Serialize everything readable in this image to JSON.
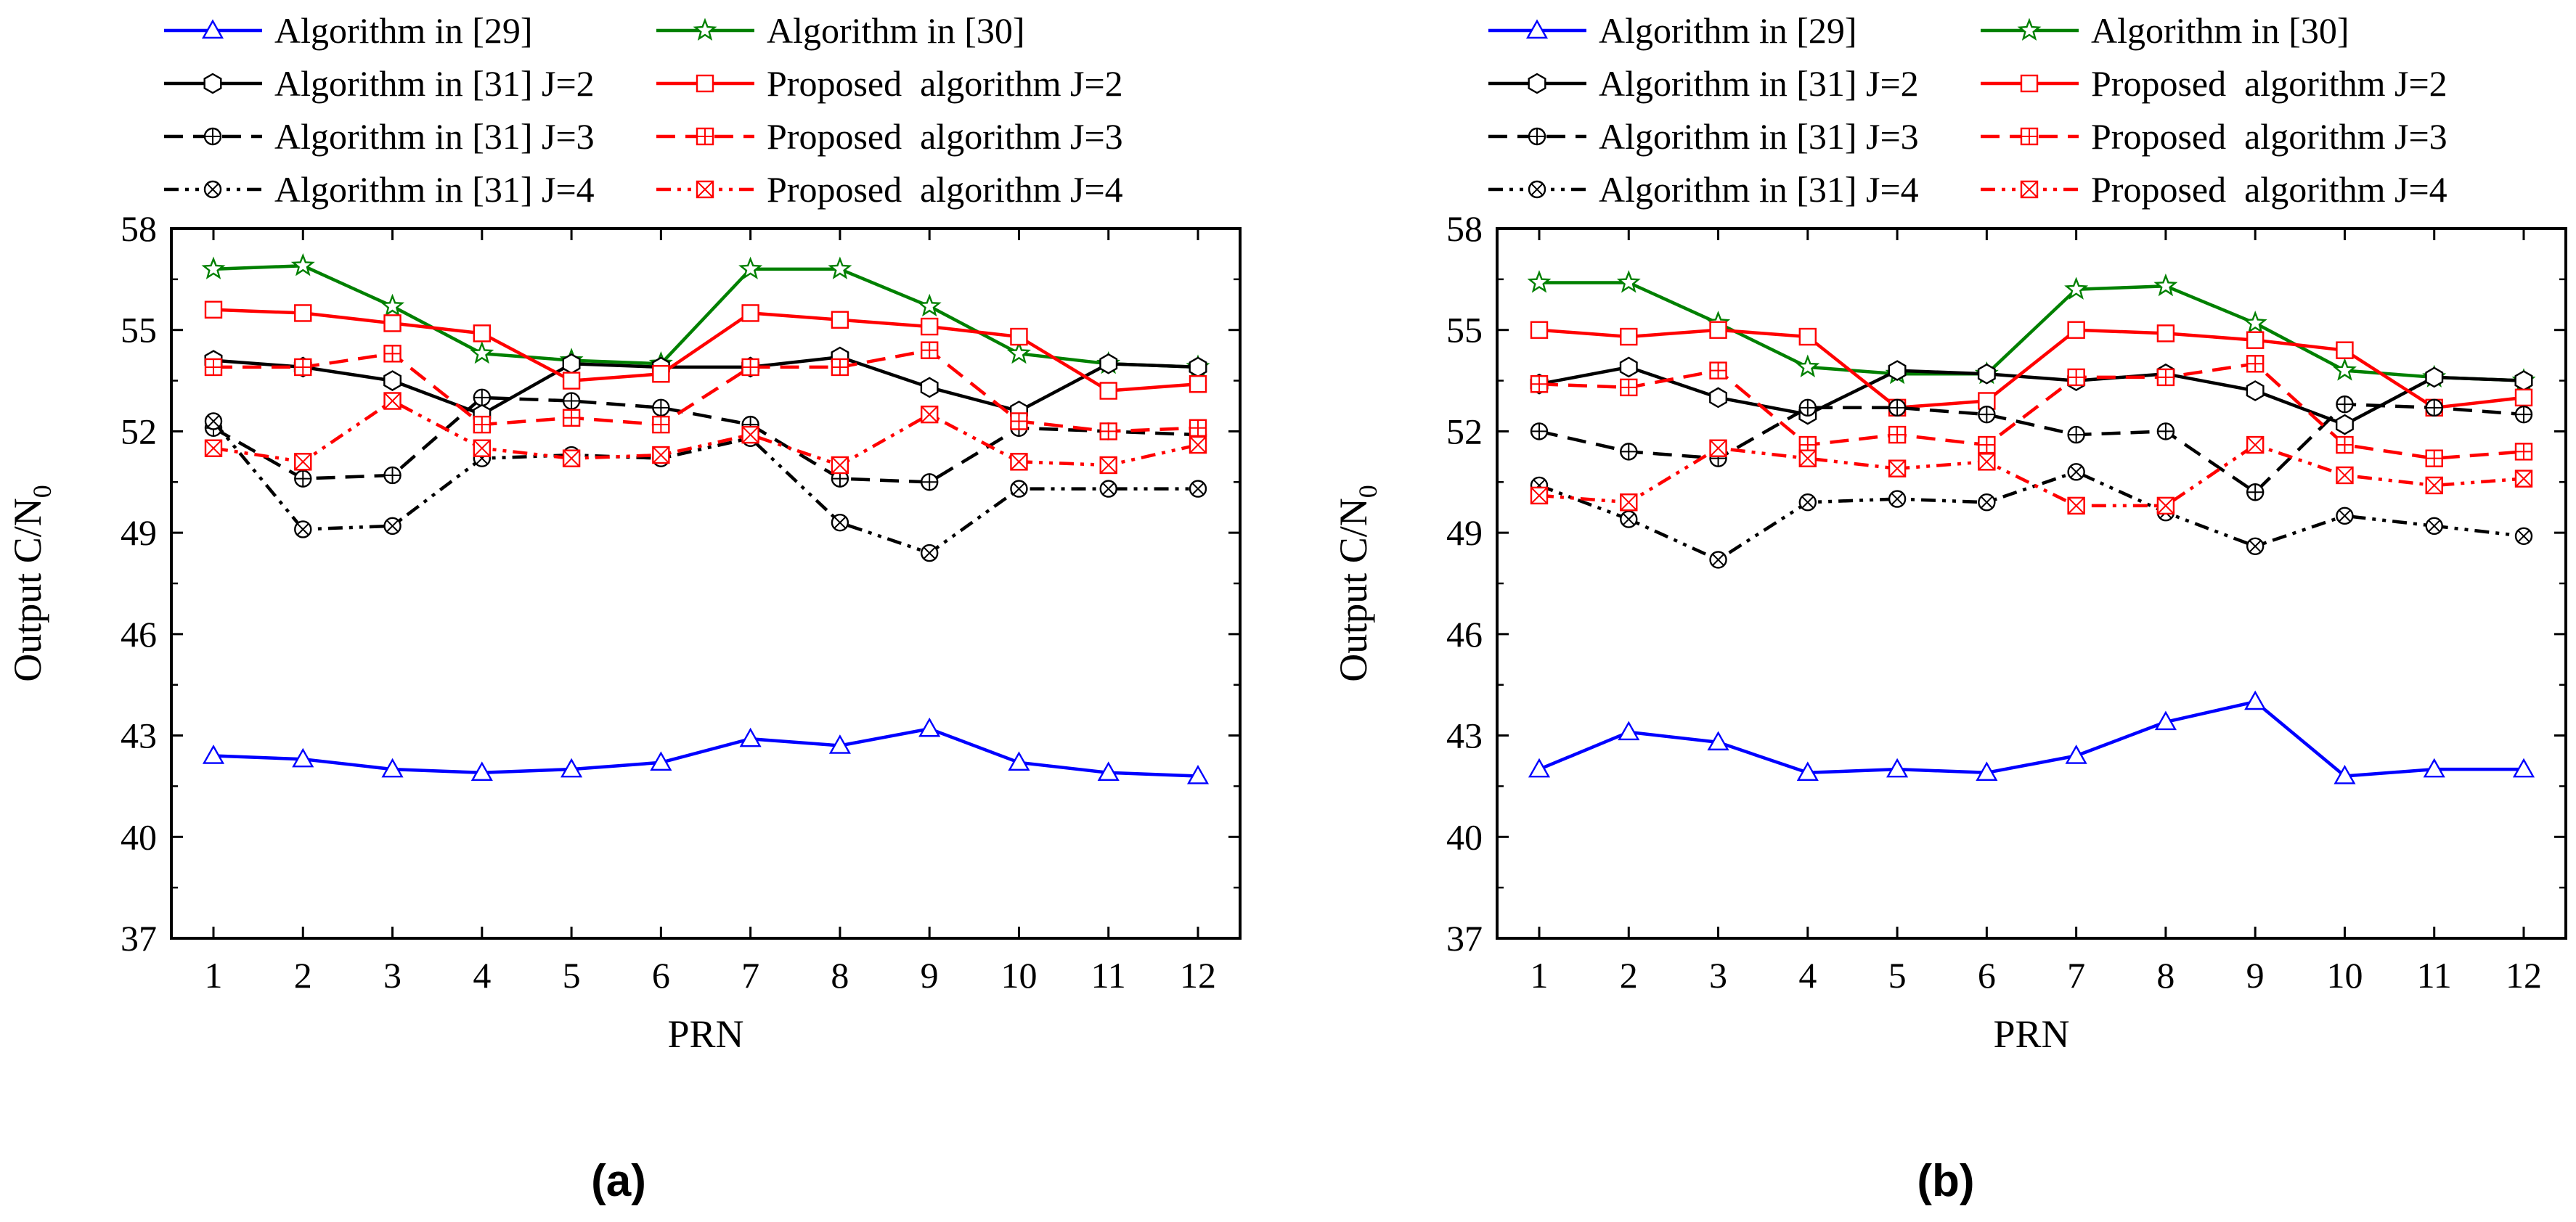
{
  "chart_data": [
    {
      "type": "line",
      "panel_label": "(a)",
      "xlabel": "PRN",
      "ylabel": "Output C/N0",
      "ylabel_main": "Output C/N",
      "ylabel_sub": "0",
      "xlim": [
        1,
        12
      ],
      "ylim": [
        37,
        58
      ],
      "yticks": [
        37,
        40,
        43,
        46,
        49,
        52,
        55,
        58
      ],
      "xticks": [
        1,
        2,
        3,
        4,
        5,
        6,
        7,
        8,
        9,
        10,
        11,
        12
      ],
      "x": [
        1,
        2,
        3,
        4,
        5,
        6,
        7,
        8,
        9,
        10,
        11,
        12
      ],
      "legend_position": "top",
      "series": [
        {
          "name": "Algorithm in [29]",
          "color": "#0000ff",
          "dash": "solid",
          "marker": "triangle",
          "values": [
            42.4,
            42.3,
            42.0,
            41.9,
            42.0,
            42.2,
            42.9,
            42.7,
            43.2,
            42.2,
            41.9,
            41.8
          ]
        },
        {
          "name": "Algorithm in [30]",
          "color": "#008000",
          "dash": "solid",
          "marker": "star",
          "values": [
            56.8,
            56.9,
            55.7,
            54.3,
            54.1,
            54.0,
            56.8,
            56.8,
            55.7,
            54.3,
            54.0,
            53.9
          ]
        },
        {
          "name": "Algorithm in [31] J=2",
          "color": "#000000",
          "dash": "solid",
          "marker": "hexagon",
          "values": [
            54.1,
            53.9,
            53.5,
            52.5,
            54.0,
            53.9,
            53.9,
            54.2,
            53.3,
            52.6,
            54.0,
            53.9
          ]
        },
        {
          "name": "Proposed  algorithm J=2",
          "color": "#ff0000",
          "dash": "solid",
          "marker": "square",
          "values": [
            55.6,
            55.5,
            55.2,
            54.9,
            53.5,
            53.7,
            55.5,
            55.3,
            55.1,
            54.8,
            53.2,
            53.4
          ]
        },
        {
          "name": "Algorithm in [31] J=3",
          "color": "#000000",
          "dash": "dash",
          "marker": "circleplus",
          "values": [
            52.1,
            50.6,
            50.7,
            53.0,
            52.9,
            52.7,
            52.2,
            50.6,
            50.5,
            52.1,
            52.0,
            51.9
          ]
        },
        {
          "name": "Proposed  algorithm J=3",
          "color": "#ff0000",
          "dash": "dash",
          "marker": "squareplus",
          "values": [
            53.9,
            53.9,
            54.3,
            52.2,
            52.4,
            52.2,
            53.9,
            53.9,
            54.4,
            52.3,
            52.0,
            52.1
          ]
        },
        {
          "name": "Algorithm in [31] J=4",
          "color": "#000000",
          "dash": "dashdotdot",
          "marker": "circlex",
          "values": [
            52.3,
            49.1,
            49.2,
            51.2,
            51.3,
            51.2,
            51.8,
            49.3,
            48.4,
            50.3,
            50.3,
            50.3
          ]
        },
        {
          "name": "Proposed  algorithm J=4",
          "color": "#ff0000",
          "dash": "dashdotdot",
          "marker": "squarex",
          "values": [
            51.5,
            51.1,
            52.9,
            51.5,
            51.2,
            51.3,
            51.9,
            51.0,
            52.5,
            51.1,
            51.0,
            51.6
          ]
        }
      ]
    },
    {
      "type": "line",
      "panel_label": "(b)",
      "xlabel": "PRN",
      "ylabel": "Output C/N0",
      "ylabel_main": "Output C/N",
      "ylabel_sub": "0",
      "xlim": [
        1,
        12
      ],
      "ylim": [
        37,
        58
      ],
      "yticks": [
        37,
        40,
        43,
        46,
        49,
        52,
        55,
        58
      ],
      "xticks": [
        1,
        2,
        3,
        4,
        5,
        6,
        7,
        8,
        9,
        10,
        11,
        12
      ],
      "x": [
        1,
        2,
        3,
        4,
        5,
        6,
        7,
        8,
        9,
        10,
        11,
        12
      ],
      "legend_position": "top",
      "series": [
        {
          "name": "Algorithm in [29]",
          "color": "#0000ff",
          "dash": "solid",
          "marker": "triangle",
          "values": [
            42.0,
            43.1,
            42.8,
            41.9,
            42.0,
            41.9,
            42.4,
            43.4,
            44.0,
            41.8,
            42.0,
            42.0
          ]
        },
        {
          "name": "Algorithm in [30]",
          "color": "#008000",
          "dash": "solid",
          "marker": "star",
          "values": [
            56.4,
            56.4,
            55.2,
            53.9,
            53.7,
            53.7,
            56.2,
            56.3,
            55.2,
            53.8,
            53.6,
            53.5
          ]
        },
        {
          "name": "Algorithm in [31] J=2",
          "color": "#000000",
          "dash": "solid",
          "marker": "hexagon",
          "values": [
            53.4,
            53.9,
            53.0,
            52.5,
            53.8,
            53.7,
            53.5,
            53.7,
            53.2,
            52.2,
            53.6,
            53.5
          ]
        },
        {
          "name": "Proposed  algorithm J=2",
          "color": "#ff0000",
          "dash": "solid",
          "marker": "square",
          "values": [
            55.0,
            54.8,
            55.0,
            54.8,
            52.7,
            52.9,
            55.0,
            54.9,
            54.7,
            54.4,
            52.7,
            53.0
          ]
        },
        {
          "name": "Algorithm in [31] J=3",
          "color": "#000000",
          "dash": "dash",
          "marker": "circleplus",
          "values": [
            52.0,
            51.4,
            51.2,
            52.7,
            52.7,
            52.5,
            51.9,
            52.0,
            50.2,
            52.8,
            52.7,
            52.5
          ]
        },
        {
          "name": "Proposed  algorithm J=3",
          "color": "#ff0000",
          "dash": "dash",
          "marker": "squareplus",
          "values": [
            53.4,
            53.3,
            53.8,
            51.6,
            51.9,
            51.6,
            53.6,
            53.6,
            54.0,
            51.6,
            51.2,
            51.4
          ]
        },
        {
          "name": "Algorithm in [31] J=4",
          "color": "#000000",
          "dash": "dashdotdot",
          "marker": "circlex",
          "values": [
            50.4,
            49.4,
            48.2,
            49.9,
            50.0,
            49.9,
            50.8,
            49.6,
            48.6,
            49.5,
            49.2,
            48.9
          ]
        },
        {
          "name": "Proposed  algorithm J=4",
          "color": "#ff0000",
          "dash": "dashdotdot",
          "marker": "squarex",
          "values": [
            50.1,
            49.9,
            51.5,
            51.2,
            50.9,
            51.1,
            49.8,
            49.8,
            51.6,
            50.7,
            50.4,
            50.6
          ]
        }
      ]
    }
  ]
}
